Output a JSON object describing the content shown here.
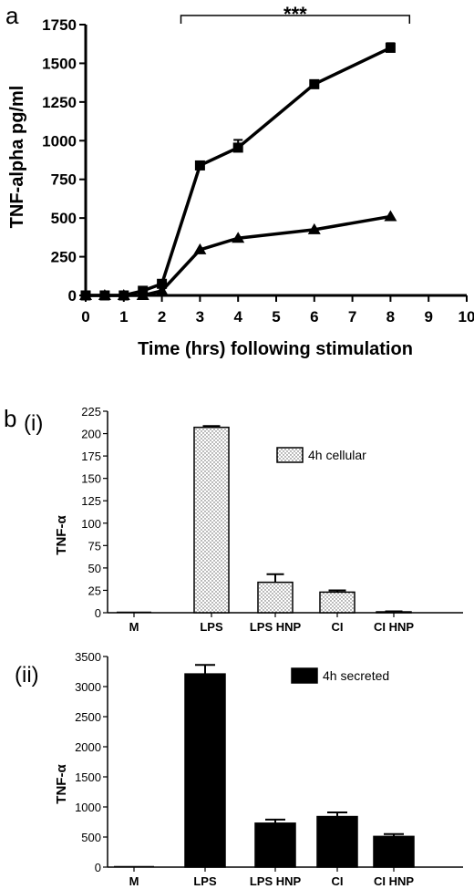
{
  "chart_data": [
    {
      "type": "line",
      "panel_label": "a",
      "xlabel": "Time (hrs) following stimulation",
      "ylabel": "TNF-alpha pg/ml",
      "xlim": [
        0,
        10
      ],
      "ylim": [
        0,
        1750
      ],
      "xticks": [
        "0",
        "1",
        "2",
        "3",
        "4",
        "5",
        "6",
        "7",
        "8",
        "9",
        "10"
      ],
      "yticks": [
        "0",
        "250",
        "500",
        "750",
        "1000",
        "1250",
        "1500",
        "1750"
      ],
      "significance": "***",
      "significance_span": [
        2.5,
        8.5
      ],
      "series": [
        {
          "marker": "square",
          "x": [
            0,
            0.5,
            1,
            1.5,
            2,
            3,
            4,
            6,
            8
          ],
          "y": [
            0,
            0,
            0,
            30,
            75,
            840,
            955,
            1365,
            1600
          ],
          "err": [
            0,
            0,
            0,
            10,
            15,
            15,
            50,
            15,
            30
          ]
        },
        {
          "marker": "triangle",
          "x": [
            0,
            0.5,
            1,
            1.5,
            2,
            3,
            4,
            6,
            8
          ],
          "y": [
            0,
            0,
            0,
            0,
            30,
            295,
            370,
            425,
            510
          ],
          "err": [
            0,
            0,
            0,
            0,
            0,
            0,
            0,
            0,
            0
          ]
        }
      ],
      "grid": false
    },
    {
      "type": "bar",
      "panel_label": "b",
      "subpanel_label": "(i)",
      "ylabel": "TNF-α",
      "ylim": [
        0,
        225
      ],
      "yticks": [
        "0",
        "25",
        "50",
        "75",
        "100",
        "125",
        "150",
        "175",
        "200",
        "225"
      ],
      "categories": [
        "M",
        "LPS",
        "LPS HNP",
        "CI",
        "CI HNP"
      ],
      "series": [
        {
          "name": "4h cellular",
          "style": "dotted",
          "values": [
            0,
            207,
            34,
            23,
            1
          ],
          "err": [
            0,
            1.5,
            9,
            2,
            0.5
          ]
        }
      ],
      "legend_position": "top-right",
      "grid": false
    },
    {
      "type": "bar",
      "subpanel_label": "(ii)",
      "ylabel": "TNF-α",
      "ylim": [
        0,
        3500
      ],
      "yticks": [
        "0",
        "500",
        "1000",
        "1500",
        "2000",
        "2500",
        "3000",
        "3500"
      ],
      "categories": [
        "M",
        "LPS",
        "LPS HNP",
        "CI",
        "CI HNP"
      ],
      "series": [
        {
          "name": "4h secreted",
          "style": "black",
          "values": [
            0,
            3210,
            730,
            840,
            510
          ],
          "err": [
            0,
            150,
            60,
            70,
            40
          ]
        }
      ],
      "legend_position": "top-right",
      "grid": false
    }
  ]
}
